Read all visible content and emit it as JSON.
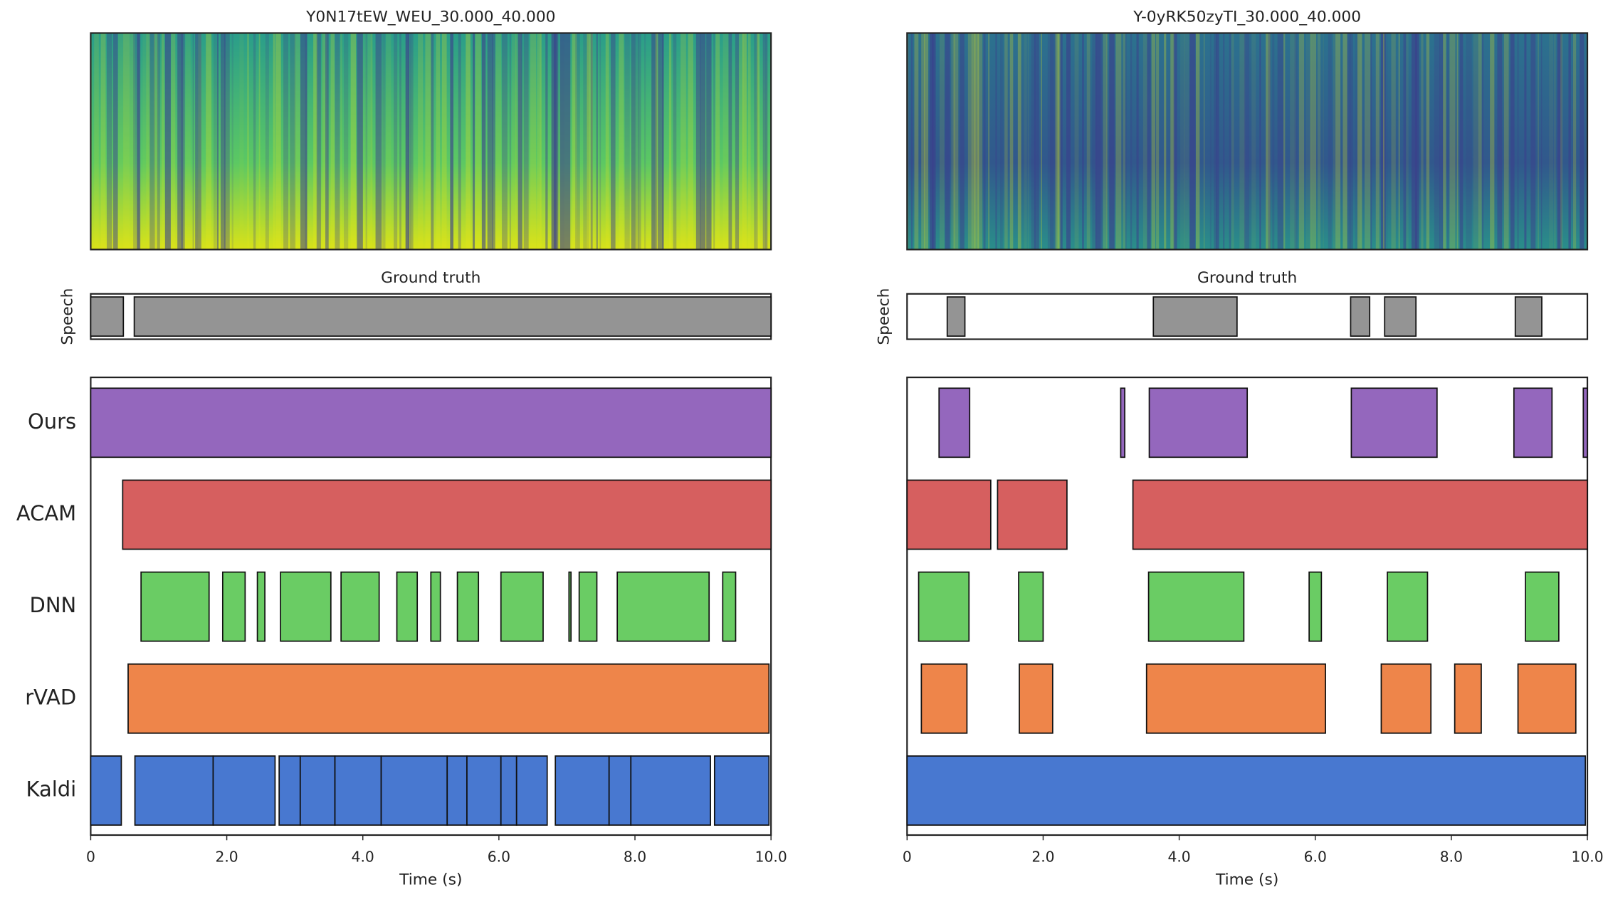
{
  "chart_data": [
    {
      "type": "timeline",
      "title": "Y0N17tEW_WEU_30.000_40.000",
      "ground_truth_title": "Ground truth",
      "ground_truth_ylabel": "Speech",
      "ground_truth": [
        [
          0,
          0.48
        ],
        [
          0.64,
          10
        ]
      ],
      "series": [
        {
          "name": "Ours",
          "color": "#9467bd",
          "segments": [
            [
              0,
              10
            ]
          ]
        },
        {
          "name": "ACAM",
          "color": "#d65f5f",
          "segments": [
            [
              0.47,
              10
            ]
          ]
        },
        {
          "name": "DNN",
          "color": "#6acc64",
          "segments": [
            [
              0.74,
              1.74
            ],
            [
              1.94,
              2.27
            ],
            [
              2.45,
              2.56
            ],
            [
              2.79,
              3.53
            ],
            [
              3.68,
              4.24
            ],
            [
              4.5,
              4.8
            ],
            [
              5.0,
              5.14
            ],
            [
              5.39,
              5.7
            ],
            [
              6.03,
              6.65
            ],
            [
              7.03,
              7.06
            ],
            [
              7.18,
              7.44
            ],
            [
              7.74,
              9.09
            ],
            [
              9.29,
              9.48
            ]
          ]
        },
        {
          "name": "rVAD",
          "color": "#ee854a",
          "segments": [
            [
              0.55,
              9.97
            ]
          ]
        },
        {
          "name": "Kaldi",
          "color": "#4878d0",
          "segments": [
            [
              0,
              0.45
            ],
            [
              0.65,
              1.8
            ],
            [
              1.8,
              2.71
            ],
            [
              2.77,
              3.08
            ],
            [
              3.08,
              3.59
            ],
            [
              3.59,
              4.27
            ],
            [
              4.27,
              5.24
            ],
            [
              5.24,
              5.53
            ],
            [
              5.53,
              6.03
            ],
            [
              6.03,
              6.26
            ],
            [
              6.26,
              6.71
            ],
            [
              6.83,
              7.62
            ],
            [
              7.62,
              7.94
            ],
            [
              7.94,
              9.11
            ],
            [
              9.17,
              9.97
            ]
          ]
        }
      ],
      "xlim": [
        0,
        10
      ],
      "xticks": [
        0,
        {
          "value": 2,
          "label": "2.0"
        },
        {
          "value": 4,
          "label": "4.0"
        },
        {
          "value": 6,
          "label": "6.0"
        },
        {
          "value": 8,
          "label": "8.0"
        },
        {
          "value": 10,
          "label": "10.0"
        }
      ],
      "xlabel": "Time (s)"
    },
    {
      "type": "timeline",
      "title": "Y-0yRK50zyTI_30.000_40.000",
      "ground_truth_title": "Ground truth",
      "ground_truth_ylabel": "Speech",
      "ground_truth": [
        [
          0.59,
          0.85
        ],
        [
          3.62,
          4.85
        ],
        [
          6.52,
          6.8
        ],
        [
          7.02,
          7.48
        ],
        [
          8.94,
          9.33
        ]
      ],
      "series": [
        {
          "color": "#9467bd",
          "segments": [
            [
              0.47,
              0.92
            ],
            [
              3.14,
              3.2
            ],
            [
              3.56,
              5.0
            ],
            [
              6.53,
              7.79
            ],
            [
              8.92,
              9.48
            ],
            [
              9.94,
              10
            ]
          ]
        },
        {
          "color": "#d65f5f",
          "segments": [
            [
              0,
              1.23
            ],
            [
              1.33,
              2.35
            ],
            [
              3.32,
              10
            ]
          ]
        },
        {
          "color": "#6acc64",
          "segments": [
            [
              0.17,
              0.91
            ],
            [
              1.64,
              2.0
            ],
            [
              3.55,
              4.95
            ],
            [
              5.91,
              6.09
            ],
            [
              7.06,
              7.65
            ],
            [
              9.09,
              9.58
            ]
          ]
        },
        {
          "color": "#ee854a",
          "segments": [
            [
              0.21,
              0.88
            ],
            [
              1.65,
              2.14
            ],
            [
              3.52,
              6.15
            ],
            [
              6.97,
              7.7
            ],
            [
              8.05,
              8.44
            ],
            [
              8.98,
              9.83
            ]
          ]
        },
        {
          "color": "#4878d0",
          "segments": [
            [
              0,
              9.97
            ]
          ]
        }
      ],
      "xlim": [
        0,
        10
      ],
      "xticks": [
        0,
        {
          "value": 2,
          "label": "2.0"
        },
        {
          "value": 4,
          "label": "4.0"
        },
        {
          "value": 6,
          "label": "6.0"
        },
        {
          "value": 8,
          "label": "8.0"
        },
        {
          "value": 10,
          "label": "10.0"
        }
      ],
      "xlabel": "Time (s)"
    }
  ]
}
